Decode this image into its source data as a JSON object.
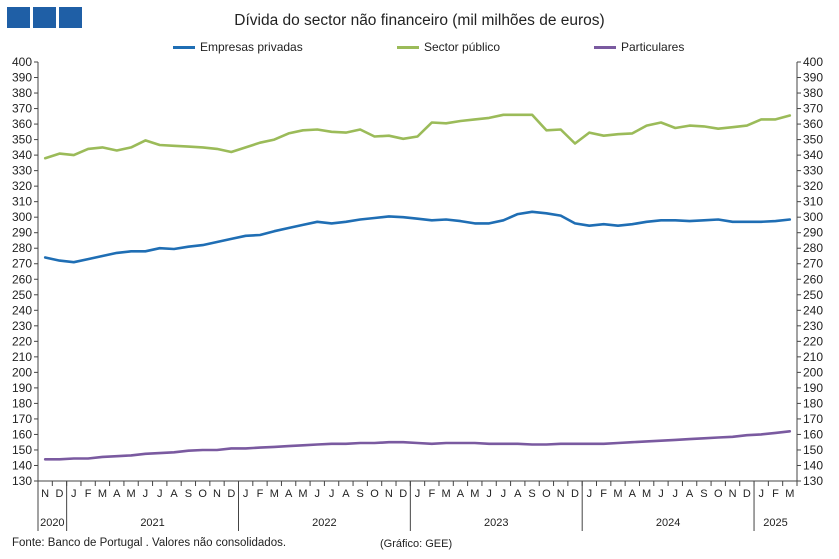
{
  "header": {
    "title": "Dívida do sector não financeiro (mil milhões de euros)"
  },
  "footer": {
    "source": "Fonte: Banco de Portugal . Valores não consolidados.",
    "credit": "(Gráfico: GEE)"
  },
  "colors": {
    "empresas": "#1f6eb4",
    "publico": "#9bbb59",
    "particulares": "#7a5aa0",
    "logo": "#1f5fa6"
  },
  "chart_data": {
    "type": "line",
    "title": "Dívida do sector não financeiro (mil milhões de euros)",
    "ylim": [
      130,
      400
    ],
    "ytick_step": 10,
    "yticks_both_sides": true,
    "grid": false,
    "legend_position": "top",
    "month_labels": [
      "N",
      "D",
      "J",
      "F",
      "M",
      "A",
      "M",
      "J",
      "J",
      "A",
      "S",
      "O",
      "N",
      "D",
      "J",
      "F",
      "M",
      "A",
      "M",
      "J",
      "J",
      "A",
      "S",
      "O",
      "N",
      "D",
      "J",
      "F",
      "M",
      "A",
      "M",
      "J",
      "J",
      "A",
      "S",
      "O",
      "N",
      "D",
      "J",
      "F",
      "M",
      "A",
      "M",
      "J",
      "J",
      "A",
      "S",
      "O",
      "N",
      "D",
      "J",
      "F",
      "M"
    ],
    "year_groups": [
      {
        "label": "2020",
        "start": 0,
        "end": 1
      },
      {
        "label": "2021",
        "start": 2,
        "end": 13
      },
      {
        "label": "2022",
        "start": 14,
        "end": 25
      },
      {
        "label": "2023",
        "start": 26,
        "end": 37
      },
      {
        "label": "2024",
        "start": 38,
        "end": 49
      },
      {
        "label": "2025",
        "start": 50,
        "end": 52
      }
    ],
    "series": [
      {
        "name": "Empresas privadas",
        "key": "empresas",
        "values": [
          274,
          272,
          271,
          273,
          275,
          277,
          278,
          278,
          280,
          279.5,
          281,
          282,
          284,
          286,
          288,
          288.5,
          291,
          293,
          295,
          297,
          296,
          297,
          298.5,
          299.5,
          300.5,
          300,
          299,
          298,
          298.5,
          297.5,
          296,
          296,
          298,
          302,
          303.5,
          302.5,
          301,
          296,
          294.5,
          295.5,
          294.5,
          295.5,
          297,
          298,
          298,
          297.5,
          298,
          298.5,
          297,
          297,
          297,
          297.5,
          298.5
        ]
      },
      {
        "name": "Sector público",
        "key": "publico",
        "values": [
          338,
          341,
          340,
          344,
          345,
          343,
          345,
          349.5,
          346.5,
          346,
          345.5,
          345,
          344,
          342,
          345,
          348,
          350,
          354,
          356,
          356.5,
          355,
          354.5,
          356.5,
          352,
          352.5,
          350.5,
          352,
          361,
          360.5,
          362,
          363,
          364,
          366,
          366,
          366,
          356,
          356.5,
          347.5,
          354.5,
          352.5,
          353.5,
          354,
          359,
          361,
          357.5,
          359,
          358.5,
          357,
          358,
          359,
          363,
          363,
          365.5
        ]
      },
      {
        "name": "Particulares",
        "key": "particulares",
        "values": [
          144,
          144,
          144.5,
          144.5,
          145.5,
          146,
          146.5,
          147.5,
          148,
          148.5,
          149.5,
          150,
          150,
          151,
          151,
          151.5,
          152,
          152.5,
          153,
          153.5,
          154,
          154,
          154.5,
          154.5,
          155,
          155,
          154.5,
          154,
          154.5,
          154.5,
          154.5,
          154,
          154,
          154,
          153.5,
          153.5,
          154,
          154,
          154,
          154,
          154.5,
          155,
          155.5,
          156,
          156.5,
          157,
          157.5,
          158,
          158.5,
          159.5,
          160,
          161,
          162
        ]
      }
    ]
  }
}
